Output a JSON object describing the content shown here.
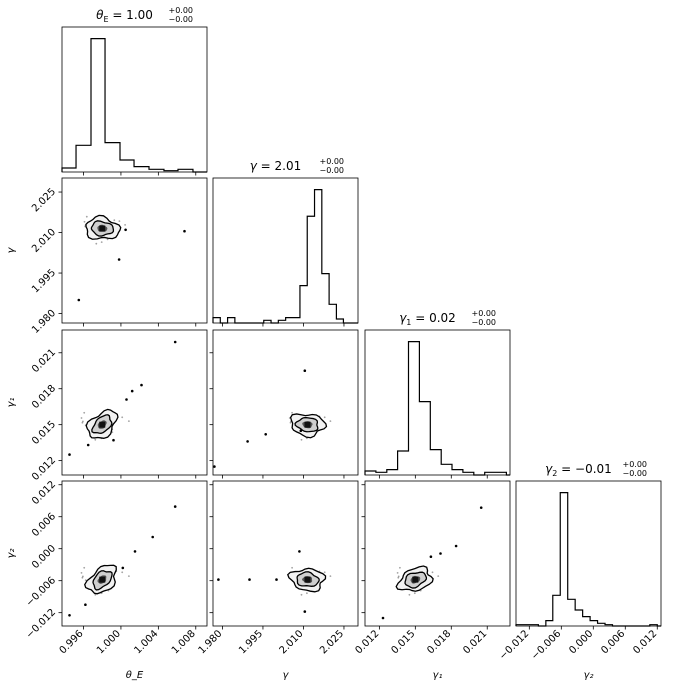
{
  "chart_data": {
    "type": "corner",
    "parameters": [
      {
        "key": "theta_E",
        "label": "θ_E",
        "ticks": [
          "0.996",
          "1.000",
          "1.004",
          "1.008"
        ],
        "tick_values": [
          0.996,
          1.0,
          1.004,
          1.008
        ],
        "range": [
          0.9937,
          1.0092
        ],
        "title": {
          "symbol": "θ",
          "sub": "E",
          "value": " = 1.00",
          "sup": "+0.00",
          "inf": "−0.00"
        }
      },
      {
        "key": "gamma",
        "label": "γ",
        "ticks": [
          "1.980",
          "1.995",
          "2.010",
          "2.025"
        ],
        "tick_values": [
          1.98,
          1.995,
          2.01,
          2.025
        ],
        "range": [
          1.9765,
          2.0302
        ],
        "title": {
          "symbol": "γ",
          "sub": "",
          "value": " = 2.01",
          "sup": "+0.00",
          "inf": "−0.00"
        }
      },
      {
        "key": "gamma1",
        "label": "γ₁",
        "ticks": [
          "0.012",
          "0.015",
          "0.018",
          "0.021"
        ],
        "tick_values": [
          0.012,
          0.015,
          0.018,
          0.021
        ],
        "range": [
          0.0108,
          0.0229
        ],
        "title": {
          "symbol": "γ",
          "sub": "1",
          "value": " = 0.02",
          "sup": "+0.00",
          "inf": "−0.00"
        }
      },
      {
        "key": "gamma2",
        "label": "γ₂",
        "ticks": [
          "−0.012",
          "−0.006",
          "0.000",
          "0.006",
          "0.012"
        ],
        "tick_values": [
          -0.012,
          -0.006,
          0.0,
          0.006,
          0.012
        ],
        "range": [
          -0.0145,
          0.0127
        ],
        "title": {
          "symbol": "γ",
          "sub": "2",
          "value": " = −0.01",
          "sup": "+0.00",
          "inf": "−0.00"
        }
      }
    ],
    "histograms": [
      {
        "bins": [
          0.9937,
          0.9952,
          0.9968,
          0.9983,
          0.9999,
          1.0014,
          1.003,
          1.0046,
          1.0061,
          1.0077,
          1.0092
        ],
        "counts": [
          0.03,
          0.2,
          1.0,
          0.22,
          0.09,
          0.04,
          0.02,
          0.01,
          0.02,
          0.0
        ]
      },
      {
        "bins": [
          1.9765,
          1.9792,
          1.9819,
          1.9846,
          1.9872,
          1.9899,
          1.9926,
          1.9953,
          1.998,
          2.0007,
          2.0034,
          2.006,
          2.0087,
          2.0114,
          2.0141,
          2.0168,
          2.0195,
          2.0222,
          2.0248,
          2.0275,
          2.0302
        ],
        "counts": [
          0.04,
          0.0,
          0.04,
          0.0,
          0.0,
          0.0,
          0.0,
          0.02,
          0.0,
          0.02,
          0.04,
          0.04,
          0.28,
          0.8,
          1.0,
          0.37,
          0.14,
          0.03,
          0.0,
          0.0
        ]
      },
      {
        "bins": [
          0.0108,
          0.01171,
          0.01262,
          0.01352,
          0.01443,
          0.01534,
          0.01625,
          0.01716,
          0.01806,
          0.01897,
          0.01988,
          0.02079,
          0.0217,
          0.0226,
          0.0229
        ],
        "counts": [
          0.03,
          0.02,
          0.04,
          0.18,
          1.0,
          0.55,
          0.19,
          0.08,
          0.04,
          0.02,
          0.0,
          0.02,
          0.02,
          0.0
        ]
      },
      {
        "bins": [
          -0.0145,
          -0.0131,
          -0.0117,
          -0.0103,
          -0.0089,
          -0.0076,
          -0.0062,
          -0.0048,
          -0.0034,
          -0.002,
          -0.0006,
          0.0008,
          0.0022,
          0.0036,
          0.005,
          0.0064,
          0.0078,
          0.0092,
          0.0106,
          0.012,
          0.0127
        ],
        "counts": [
          0.01,
          0.01,
          0.01,
          0.0,
          0.04,
          0.23,
          1.0,
          0.2,
          0.12,
          0.07,
          0.04,
          0.02,
          0.01,
          0.0,
          0.0,
          0.0,
          0.0,
          0.0,
          0.01,
          0.0
        ]
      }
    ],
    "modes": {
      "theta_E": 0.998,
      "gamma": 2.0115,
      "gamma1": 0.015,
      "gamma2": -0.0058
    },
    "outliers": [
      {
        "row": 1,
        "col": 0,
        "points": [
          [
            0.9955,
            1.985
          ],
          [
            0.9998,
            2.0
          ],
          [
            1.0005,
            2.011
          ],
          [
            1.0068,
            2.0105
          ]
        ]
      },
      {
        "row": 2,
        "col": 0,
        "points": [
          [
            0.9945,
            0.0125
          ],
          [
            0.9965,
            0.0133
          ],
          [
            0.9992,
            0.0137
          ],
          [
            1.0006,
            0.0171
          ],
          [
            1.0022,
            0.0183
          ],
          [
            1.0058,
            0.0219
          ],
          [
            1.0012,
            0.0178
          ]
        ]
      },
      {
        "row": 2,
        "col": 1,
        "points": [
          [
            1.977,
            0.0115
          ],
          [
            1.9893,
            0.0136
          ],
          [
            1.996,
            0.0142
          ],
          [
            2.009,
            0.0145
          ],
          [
            2.0105,
            0.0195
          ]
        ]
      },
      {
        "row": 3,
        "col": 0,
        "points": [
          [
            0.9945,
            -0.0125
          ],
          [
            0.9962,
            -0.0105
          ],
          [
            1.0002,
            -0.0036
          ],
          [
            1.0015,
            -0.0005
          ],
          [
            1.0034,
            0.0022
          ],
          [
            1.0058,
            0.0079
          ]
        ]
      },
      {
        "row": 3,
        "col": 1,
        "points": [
          [
            1.9785,
            -0.0058
          ],
          [
            1.99,
            -0.0058
          ],
          [
            2.0,
            -0.0058
          ],
          [
            2.0085,
            -0.0005
          ],
          [
            2.0105,
            -0.0118
          ]
        ]
      },
      {
        "row": 3,
        "col": 2,
        "points": [
          [
            0.0123,
            -0.013
          ],
          [
            0.0163,
            -0.0015
          ],
          [
            0.0171,
            -0.0009
          ],
          [
            0.0184,
            0.0005
          ],
          [
            0.0205,
            0.0077
          ]
        ]
      }
    ]
  }
}
